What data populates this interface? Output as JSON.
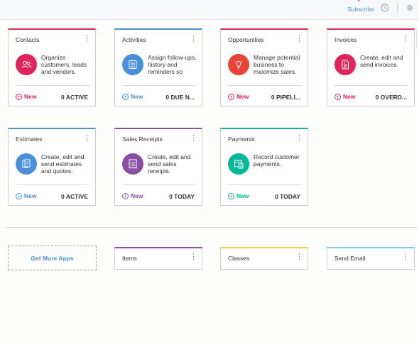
{
  "header": {
    "subscribe_label": "Subscribe",
    "clock_icon": "clock-icon",
    "settings_icon": "gear-icon"
  },
  "colors": {
    "pink": "#e0245e",
    "blue": "#4a90d9",
    "red": "#e84336",
    "purple": "#8a4fa3",
    "teal": "#00b89c",
    "yellow": "#f0d33a",
    "cyan": "#7fcbd8"
  },
  "cards": [
    {
      "title": "Contacts",
      "description": "Organize customers, leads and vendors.",
      "new_label": "New",
      "stat": "0 ACTIVE",
      "icon": "people-icon"
    },
    {
      "title": "Activities",
      "description": "Assign follow-ups, history and reminders so",
      "new_label": "New",
      "stat": "0 DUE N...",
      "icon": "checklist-icon"
    },
    {
      "title": "Opportunities",
      "description": "Manage potential business to maximize sales.",
      "new_label": "New",
      "stat": "0 PIPELI...",
      "icon": "lightbulb-icon"
    },
    {
      "title": "Invoices",
      "description": "Create, edit and send invoices.",
      "new_label": "New",
      "stat": "0 OVERD...",
      "icon": "invoice-icon"
    },
    {
      "title": "Estimates",
      "description": "Create, edit and send estimates and quotes.",
      "new_label": "New",
      "stat": "0 ACTIVE",
      "icon": "estimate-icon"
    },
    {
      "title": "Sales Receipts",
      "description": "Create, edit and send sales receipts.",
      "new_label": "New",
      "stat": "0 TODAY",
      "icon": "receipt-icon"
    },
    {
      "title": "Payments",
      "description": "Record customer payments.",
      "new_label": "New",
      "stat": "0 TODAY",
      "icon": "payment-icon"
    }
  ],
  "get_more_apps_label": "Get More Apps",
  "mini_cards": [
    {
      "title": "Items"
    },
    {
      "title": "Classes"
    },
    {
      "title": "Send Email"
    }
  ]
}
